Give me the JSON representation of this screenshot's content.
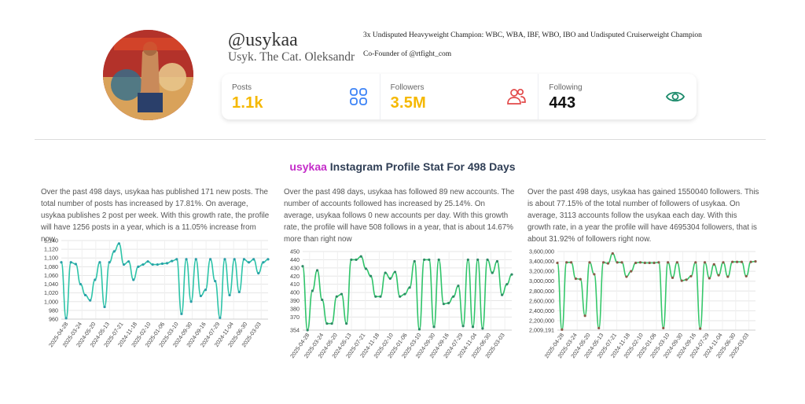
{
  "profile": {
    "username": "@usykaa",
    "full_name": "Usyk. The Cat. Oleksandr",
    "bio_line1": "3x Undisputed Heavyweight Champion: WBC, WBA, IBF, WBO, IBO and Undisputed Cruiserweight Champion",
    "bio_line2": "Co-Founder of @rtfight_com"
  },
  "stats": {
    "posts": {
      "label": "Posts",
      "value": "1.1k",
      "color": "#f5b800",
      "icon": "grid-icon",
      "icon_color": "#3b82f6"
    },
    "followers": {
      "label": "Followers",
      "value": "3.5M",
      "color": "#f5b800",
      "icon": "users-icon",
      "icon_color": "#e24a4a"
    },
    "following": {
      "label": "Following",
      "value": "443",
      "color": "#111111",
      "icon": "eye-icon",
      "icon_color": "#1a8a6a"
    }
  },
  "section": {
    "title_highlight": "usykaa",
    "title_rest": "Instagram Profile Stat For 498 Days"
  },
  "descriptions": {
    "posts": "Over the past 498 days, usykaa has published 171 new posts. The total number of posts has increased by 17.81%. On average, usykaa publishes 2 post per week. With this growth rate, the profile will have 1256 posts in a year, which is a 11.05% increase from now.",
    "following": "Over the past 498 days, usykaa has followed 89 new accounts. The number of accounts followed has increased by 25.14%. On average, usykaa follows 0 new accounts per day. With this growth rate, the profile will have 508 follows in a year, that is about 14.67% more than right now",
    "followers": "Over the past 498 days, usykaa has gained 1550040 followers. This is about 77.15% of the total number of followers of usykaa. On average, 3113 accounts follow the usykaa each day. With this growth rate, in a year the profile will have 4695304 followers, that is about 31.92% of followers right now."
  },
  "chart_data": [
    {
      "type": "line",
      "name": "posts",
      "line_color": "#2dc4a8",
      "point_color": "#2a9fa8",
      "x_ticks": [
        "2025-04-28",
        "2025-03-24",
        "2024-05-20",
        "2024-05-13",
        "2025-07-21",
        "2024-11-18",
        "2025-02-10",
        "2025-01-06",
        "2025-03-10",
        "2024-09-30",
        "2024-09-16",
        "2024-07-29",
        "2024-11-04",
        "2025-06-30",
        "2025-03-03"
      ],
      "y_ticks": [
        960,
        980,
        1000,
        1020,
        1040,
        1060,
        1080,
        1100,
        1120,
        1140
      ],
      "ylim": [
        960,
        1140
      ],
      "values": [
        1090,
        962,
        1090,
        1086,
        1040,
        1015,
        1003,
        1050,
        1090,
        988,
        1090,
        1115,
        1133,
        1085,
        1092,
        1050,
        1080,
        1085,
        1092,
        1085,
        1085,
        1087,
        1088,
        1093,
        1097,
        972,
        1097,
        1000,
        1097,
        1013,
        1027,
        1097,
        1047,
        963,
        1097,
        1015,
        1097,
        1022,
        1097,
        1090,
        1097,
        1065,
        1090,
        1097
      ]
    },
    {
      "type": "line",
      "name": "following",
      "line_color": "#2fc46a",
      "point_color": "#2e8a66",
      "x_ticks": [
        "2025-04-28",
        "2025-03-24",
        "2024-05-20",
        "2024-05-13",
        "2025-07-21",
        "2024-11-18",
        "2025-02-10",
        "2025-01-06",
        "2025-03-10",
        "2024-09-30",
        "2024-09-16",
        "2024-07-29",
        "2024-11-04",
        "2025-06-30",
        "2025-03-03"
      ],
      "y_ticks": [
        354,
        370,
        380,
        390,
        400,
        410,
        420,
        430,
        440,
        450
      ],
      "ylim": [
        354,
        450
      ],
      "values": [
        432,
        354,
        402,
        427,
        391,
        362,
        362,
        395,
        398,
        362,
        440,
        440,
        444,
        429,
        420,
        395,
        395,
        424,
        417,
        425,
        395,
        398,
        406,
        438,
        355,
        440,
        440,
        358,
        440,
        386,
        387,
        395,
        408,
        359,
        440,
        358,
        440,
        356,
        440,
        424,
        438,
        397,
        410,
        422
      ]
    },
    {
      "type": "line",
      "name": "followers",
      "line_color": "#35c76a",
      "point_color": "#8a5a48",
      "x_ticks": [
        "2025-04-28",
        "2025-03-24",
        "2024-05-20",
        "2024-05-13",
        "2025-07-21",
        "2024-11-18",
        "2025-02-10",
        "2025-01-06",
        "2025-03-10",
        "2024-09-30",
        "2024-09-16",
        "2024-07-29",
        "2024-11-04",
        "2025-06-30",
        "2025-03-03"
      ],
      "y_ticks": [
        "2,009,191",
        "2,200,000",
        "2,400,000",
        "2,600,000",
        "2,800,000",
        "3,000,000",
        "3,200,000",
        "3,400,000",
        "3,600,000"
      ],
      "ylim": [
        2009191,
        3600000
      ],
      "values": [
        3370000,
        2020000,
        3380000,
        3380000,
        3050000,
        3040000,
        2300000,
        3380000,
        3140000,
        2050000,
        3380000,
        3360000,
        3560000,
        3380000,
        3380000,
        3090000,
        3200000,
        3370000,
        3380000,
        3370000,
        3370000,
        3370000,
        3380000,
        2050000,
        3380000,
        3070000,
        3380000,
        3010000,
        3030000,
        3100000,
        3380000,
        2040000,
        3380000,
        3060000,
        3340000,
        3120000,
        3380000,
        3090000,
        3390000,
        3390000,
        3390000,
        3100000,
        3390000,
        3400000
      ]
    }
  ]
}
